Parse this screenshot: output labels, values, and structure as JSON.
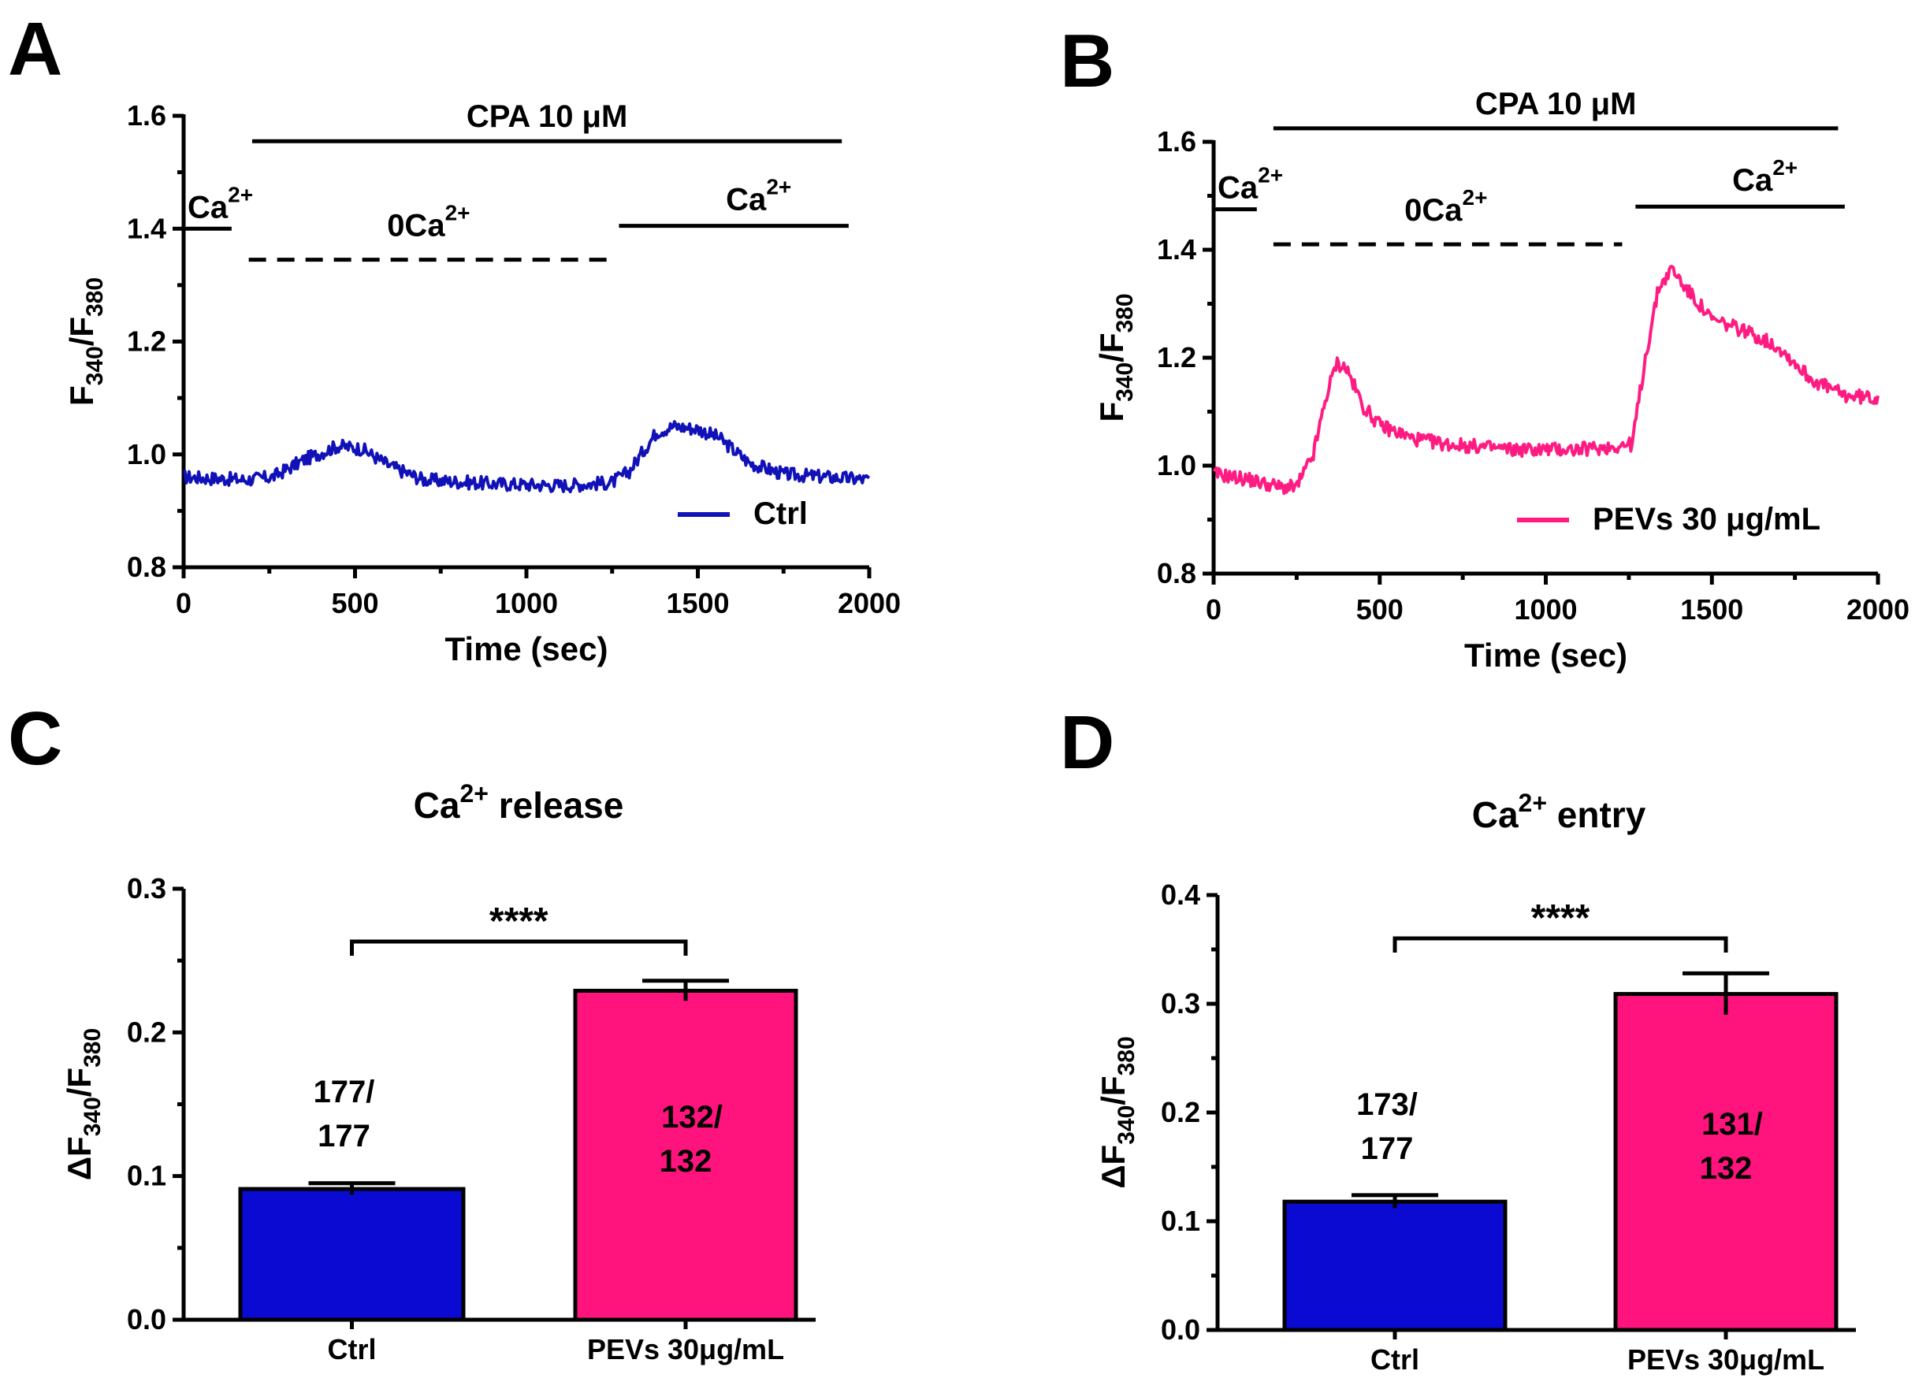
{
  "panels": {
    "A": {
      "letter": "A"
    },
    "B": {
      "letter": "B"
    },
    "C": {
      "letter": "C"
    },
    "D": {
      "letter": "D"
    }
  },
  "colors": {
    "ctrl": "#1111b8",
    "pevs": "#ff1c82",
    "ctrl_bar": "#0a0ad2",
    "pevs_bar": "#ff147d"
  },
  "chart_data": [
    {
      "id": "A",
      "type": "line",
      "xlabel": "Time (sec)",
      "ylabel": {
        "main": "F",
        "sub1": "340",
        "slash": "/F",
        "sub2": "380"
      },
      "xlim": [
        0,
        2000
      ],
      "ylim": [
        0.8,
        1.6
      ],
      "xticks": [
        0,
        500,
        1000,
        1500,
        2000
      ],
      "yticks": [
        0.8,
        1.0,
        1.2,
        1.4,
        1.6
      ],
      "ytick_labels": [
        "0.8",
        "1.0",
        "1.2",
        "1.4",
        "1.6"
      ],
      "legend": "Ctrl",
      "annotations": {
        "cpa": "CPA 10 μM",
        "ca_left_base": "Ca",
        "ca_sup": "2+",
        "zero_ca_base": "0Ca",
        "ca_right_base": "Ca"
      },
      "protocol_bars": {
        "cpa": {
          "x": [
            200,
            1920
          ],
          "y": 1.555,
          "style": "solid"
        },
        "ca_left": {
          "x": [
            0,
            140
          ],
          "y": 1.4,
          "style": "solid"
        },
        "zero_ca": {
          "x": [
            190,
            1250
          ],
          "y": 1.345,
          "style": "dashed"
        },
        "ca_right": {
          "x": [
            1270,
            1940
          ],
          "y": 1.405,
          "style": "solid"
        }
      },
      "trace": {
        "noise": 0.012,
        "keypoints": [
          [
            0,
            0.96
          ],
          [
            180,
            0.955
          ],
          [
            260,
            0.96
          ],
          [
            350,
            0.99
          ],
          [
            450,
            1.015
          ],
          [
            520,
            1.01
          ],
          [
            600,
            0.98
          ],
          [
            700,
            0.955
          ],
          [
            900,
            0.948
          ],
          [
            1100,
            0.945
          ],
          [
            1250,
            0.95
          ],
          [
            1300,
            0.97
          ],
          [
            1380,
            1.04
          ],
          [
            1430,
            1.05
          ],
          [
            1500,
            1.045
          ],
          [
            1560,
            1.03
          ],
          [
            1650,
            0.985
          ],
          [
            1750,
            0.965
          ],
          [
            2000,
            0.955
          ]
        ]
      }
    },
    {
      "id": "B",
      "type": "line",
      "xlabel": "Time (sec)",
      "ylabel": {
        "main": "F",
        "sub1": "340",
        "slash": "/F",
        "sub2": "380"
      },
      "xlim": [
        0,
        2000
      ],
      "ylim": [
        0.8,
        1.6
      ],
      "xticks": [
        0,
        500,
        1000,
        1500,
        2000
      ],
      "yticks": [
        0.8,
        1.0,
        1.2,
        1.4,
        1.6
      ],
      "ytick_labels": [
        "0.8",
        "1.0",
        "1.2",
        "1.4",
        "1.6"
      ],
      "legend": "PEVs 30 μg/mL",
      "annotations": {
        "cpa": "CPA 10 μM",
        "ca_left_base": "Ca",
        "ca_sup": "2+",
        "zero_ca_base": "0Ca",
        "ca_right_base": "Ca"
      },
      "protocol_bars": {
        "cpa": {
          "x": [
            180,
            1880
          ],
          "y": 1.625,
          "style": "solid"
        },
        "ca_left": {
          "x": [
            0,
            130
          ],
          "y": 1.475,
          "style": "solid"
        },
        "zero_ca": {
          "x": [
            180,
            1230
          ],
          "y": 1.41,
          "style": "dashed"
        },
        "ca_right": {
          "x": [
            1270,
            1900
          ],
          "y": 1.48,
          "style": "solid"
        }
      },
      "trace": {
        "noise": 0.013,
        "keypoints": [
          [
            0,
            0.985
          ],
          [
            100,
            0.975
          ],
          [
            200,
            0.96
          ],
          [
            250,
            0.96
          ],
          [
            300,
            1.02
          ],
          [
            340,
            1.13
          ],
          [
            370,
            1.19
          ],
          [
            400,
            1.18
          ],
          [
            450,
            1.11
          ],
          [
            500,
            1.075
          ],
          [
            600,
            1.05
          ],
          [
            700,
            1.04
          ],
          [
            900,
            1.03
          ],
          [
            1100,
            1.03
          ],
          [
            1200,
            1.035
          ],
          [
            1260,
            1.04
          ],
          [
            1300,
            1.2
          ],
          [
            1340,
            1.33
          ],
          [
            1380,
            1.365
          ],
          [
            1420,
            1.33
          ],
          [
            1500,
            1.27
          ],
          [
            1600,
            1.25
          ],
          [
            1700,
            1.22
          ],
          [
            1800,
            1.16
          ],
          [
            1900,
            1.13
          ],
          [
            2000,
            1.125
          ]
        ]
      }
    },
    {
      "id": "C",
      "type": "bar",
      "title_base": "Ca",
      "title_sup": "2+",
      "title_rest": " release",
      "categories": [
        "Ctrl",
        "PEVs 30μg/mL"
      ],
      "values": [
        0.091,
        0.229
      ],
      "errors": [
        0.004,
        0.007
      ],
      "ylim": [
        0.0,
        0.3
      ],
      "yticks": [
        0.0,
        0.1,
        0.2,
        0.3
      ],
      "ytick_labels": [
        "0.0",
        "0.1",
        "0.2",
        "0.3"
      ],
      "ylabel": {
        "delta": "ΔF",
        "sub1": "340",
        "slash": "/F",
        "sub2": "380"
      },
      "significance": "****",
      "counts": [
        [
          "177/",
          "177"
        ],
        [
          "132/",
          "132"
        ]
      ]
    },
    {
      "id": "D",
      "type": "bar",
      "title_base": "Ca",
      "title_sup": "2+",
      "title_rest": " entry",
      "categories": [
        "Ctrl",
        "PEVs 30μg/mL"
      ],
      "values": [
        0.118,
        0.309
      ],
      "errors": [
        0.006,
        0.019
      ],
      "ylim": [
        0.0,
        0.4
      ],
      "yticks": [
        0.0,
        0.1,
        0.2,
        0.3,
        0.4
      ],
      "ytick_labels": [
        "0.0",
        "0.1",
        "0.2",
        "0.3",
        "0.4"
      ],
      "ylabel": {
        "delta": "ΔF",
        "sub1": "340",
        "slash": "/F",
        "sub2": "380"
      },
      "significance": "****",
      "counts": [
        [
          "173/",
          "177"
        ],
        [
          "131/",
          "132"
        ]
      ]
    }
  ]
}
